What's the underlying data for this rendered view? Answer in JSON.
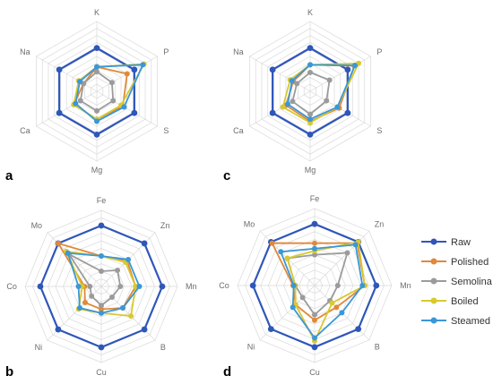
{
  "legend": [
    "Raw",
    "Polished",
    "Semolina",
    "Boiled",
    "Steamed"
  ],
  "colors": {
    "Raw": "#2f56b9",
    "Polished": "#e0893a",
    "Semolina": "#9b9b9b",
    "Boiled": "#d8c92e",
    "Steamed": "#3a97d8",
    "grid": "#d9d9d9"
  },
  "chart_data": [
    {
      "panel": "a",
      "type": "radar",
      "axes": [
        "K",
        "P",
        "S",
        "Mg",
        "Ca",
        "Na"
      ],
      "rmax": 1.0,
      "series": [
        {
          "name": "Raw",
          "values": [
            0.62,
            0.62,
            0.62,
            0.62,
            0.62,
            0.62
          ]
        },
        {
          "name": "Polished",
          "values": [
            0.35,
            0.5,
            0.43,
            0.4,
            0.38,
            0.22
          ]
        },
        {
          "name": "Semolina",
          "values": [
            0.28,
            0.25,
            0.27,
            0.28,
            0.27,
            0.22
          ]
        },
        {
          "name": "Boiled",
          "values": [
            0.35,
            0.78,
            0.4,
            0.4,
            0.38,
            0.3
          ]
        },
        {
          "name": "Steamed",
          "values": [
            0.35,
            0.76,
            0.45,
            0.43,
            0.35,
            0.28
          ]
        }
      ]
    },
    {
      "panel": "c",
      "type": "radar",
      "axes": [
        "K",
        "P",
        "S",
        "Mg",
        "Ca",
        "Na"
      ],
      "rmax": 1.0,
      "series": [
        {
          "name": "Raw",
          "values": [
            0.62,
            0.62,
            0.62,
            0.62,
            0.62,
            0.62
          ]
        },
        {
          "name": "Polished",
          "values": [
            0.38,
            0.73,
            0.48,
            0.43,
            0.4,
            0.28
          ]
        },
        {
          "name": "Semolina",
          "values": [
            0.27,
            0.32,
            0.27,
            0.33,
            0.29,
            0.22
          ]
        },
        {
          "name": "Boiled",
          "values": [
            0.38,
            0.8,
            0.45,
            0.45,
            0.45,
            0.33
          ]
        },
        {
          "name": "Steamed",
          "values": [
            0.38,
            0.74,
            0.45,
            0.4,
            0.37,
            0.3
          ]
        }
      ]
    },
    {
      "panel": "b",
      "type": "radar",
      "axes": [
        "Fe",
        "Zn",
        "Mn",
        "B",
        "Cu",
        "Ni",
        "Co",
        "Mo"
      ],
      "rmax": 1.0,
      "series": [
        {
          "name": "Raw",
          "values": [
            0.8,
            0.8,
            0.8,
            0.8,
            0.8,
            0.8,
            0.8,
            0.8
          ]
        },
        {
          "name": "Polished",
          "values": [
            0.4,
            0.48,
            0.45,
            0.4,
            0.3,
            0.3,
            0.22,
            0.8
          ]
        },
        {
          "name": "Semolina",
          "values": [
            0.2,
            0.3,
            0.25,
            0.2,
            0.25,
            0.18,
            0.15,
            0.6
          ]
        },
        {
          "name": "Boiled",
          "values": [
            0.4,
            0.45,
            0.45,
            0.55,
            0.35,
            0.42,
            0.25,
            0.65
          ]
        },
        {
          "name": "Steamed",
          "values": [
            0.4,
            0.5,
            0.5,
            0.4,
            0.35,
            0.4,
            0.3,
            0.62
          ]
        }
      ]
    },
    {
      "panel": "d",
      "type": "radar",
      "axes": [
        "Fe",
        "Zn",
        "Mn",
        "B",
        "Cu",
        "Ni",
        "Co",
        "Mo"
      ],
      "rmax": 1.0,
      "series": [
        {
          "name": "Raw",
          "values": [
            0.8,
            0.8,
            0.8,
            0.8,
            0.8,
            0.8,
            0.8,
            0.8
          ]
        },
        {
          "name": "Polished",
          "values": [
            0.55,
            0.78,
            0.65,
            0.4,
            0.45,
            0.35,
            0.28,
            0.78
          ]
        },
        {
          "name": "Semolina",
          "values": [
            0.4,
            0.6,
            0.3,
            0.28,
            0.38,
            0.22,
            0.25,
            0.5
          ]
        },
        {
          "name": "Boiled",
          "values": [
            0.45,
            0.8,
            0.65,
            0.32,
            0.72,
            0.35,
            0.25,
            0.5
          ]
        },
        {
          "name": "Steamed",
          "values": [
            0.48,
            0.75,
            0.62,
            0.5,
            0.68,
            0.4,
            0.27,
            0.62
          ]
        }
      ]
    }
  ]
}
